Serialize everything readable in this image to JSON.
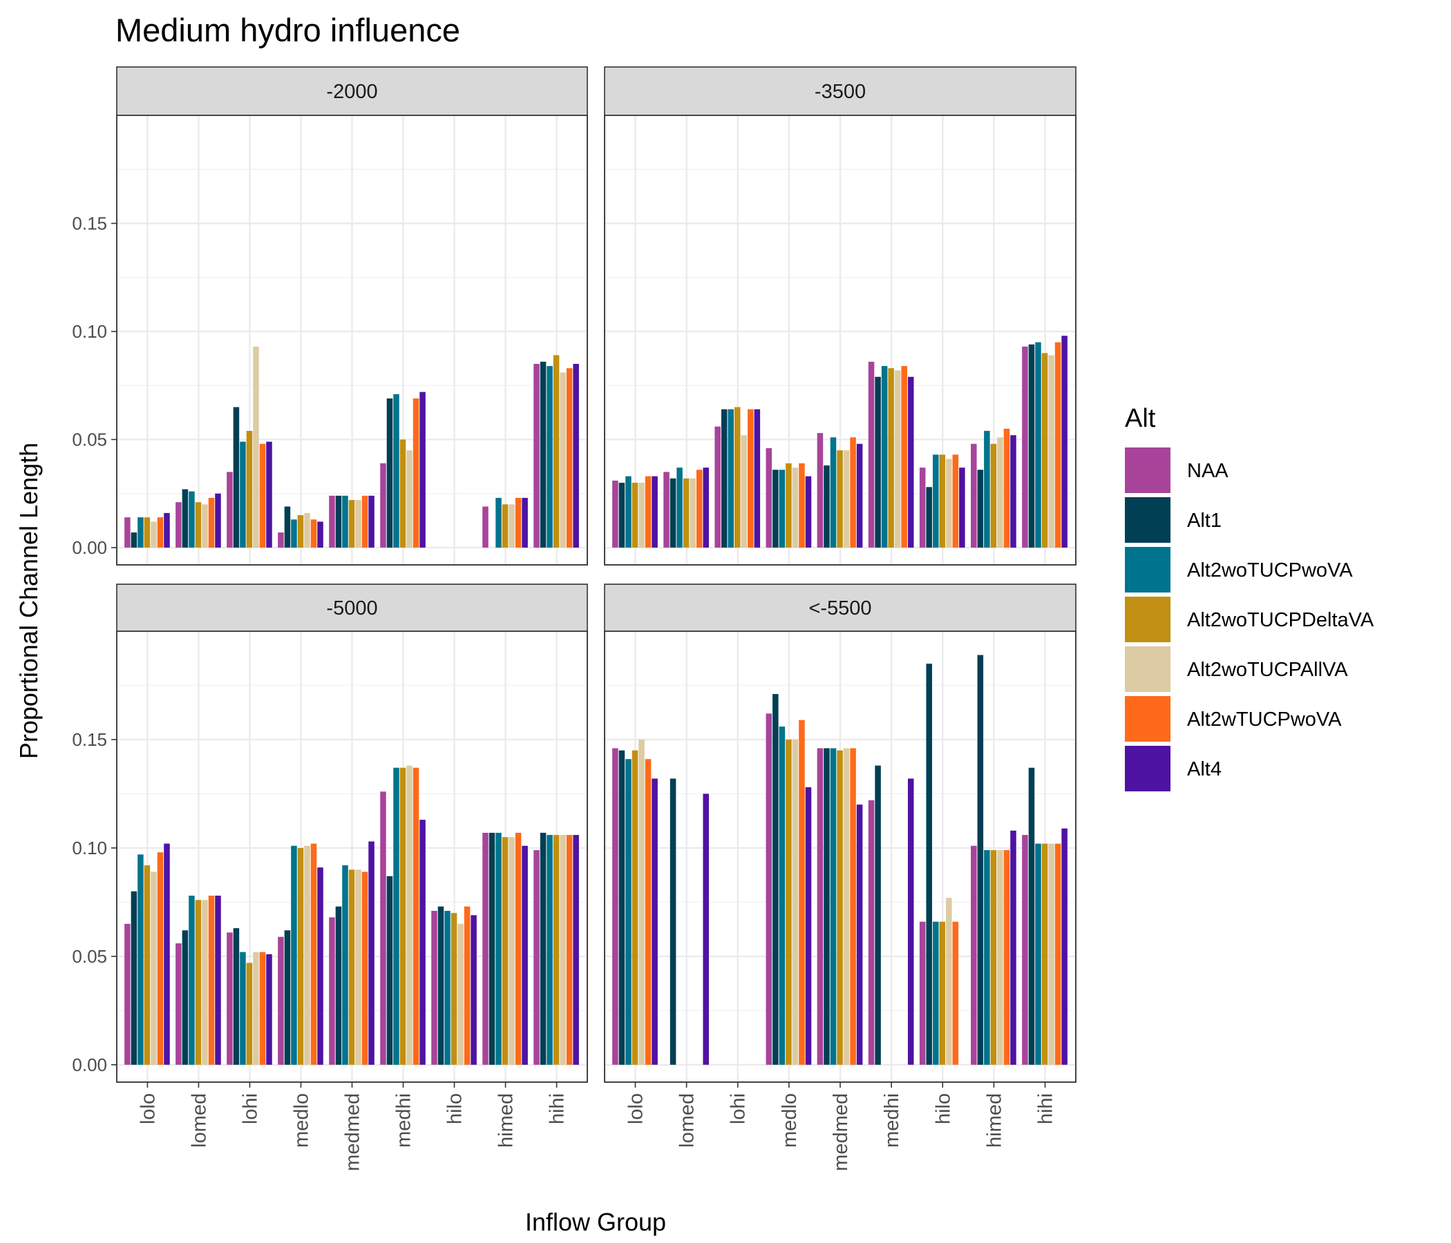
{
  "chart_data": {
    "type": "bar",
    "title": "Medium hydro influence",
    "xlabel": "Inflow Group",
    "ylabel": "Proportional Channel Length",
    "categories": [
      "lolo",
      "lomed",
      "lohi",
      "medlo",
      "medmed",
      "medhi",
      "hilo",
      "himed",
      "hihi"
    ],
    "ylim_top_row": [
      -0.008,
      0.2
    ],
    "ylim_bottom_row": [
      -0.008,
      0.2
    ],
    "yticks": [
      "0.00",
      "0.05",
      "0.10",
      "0.15"
    ],
    "ytick_values": [
      0,
      0.05,
      0.1,
      0.15
    ],
    "grid": true,
    "legend": {
      "title": "Alt",
      "position": "right",
      "entries": [
        "NAA",
        "Alt1",
        "Alt2woTUCPwoVA",
        "Alt2woTUCPDeltaVA",
        "Alt2woTUCPAllVA",
        "Alt2wTUCPwoVA",
        "Alt4"
      ]
    },
    "colors": [
      "#A8449A",
      "#013F54",
      "#00748E",
      "#C18F11",
      "#DDCBA3",
      "#FE6A1A",
      "#4E13A2"
    ],
    "panels": [
      {
        "label": "-2000",
        "series": [
          {
            "name": "NAA",
            "values": [
              0.014,
              0.021,
              0.035,
              0.007,
              0.024,
              0.039,
              null,
              0.019,
              0.085
            ]
          },
          {
            "name": "Alt1",
            "values": [
              0.007,
              0.027,
              0.065,
              0.019,
              0.024,
              0.069,
              null,
              null,
              0.086
            ]
          },
          {
            "name": "Alt2woTUCPwoVA",
            "values": [
              0.014,
              0.026,
              0.049,
              0.013,
              0.024,
              0.071,
              null,
              0.023,
              0.084
            ]
          },
          {
            "name": "Alt2woTUCPDeltaVA",
            "values": [
              0.014,
              0.021,
              0.054,
              0.015,
              0.022,
              0.05,
              null,
              0.02,
              0.089
            ]
          },
          {
            "name": "Alt2woTUCPAllVA",
            "values": [
              0.012,
              0.02,
              0.093,
              0.016,
              0.022,
              0.045,
              null,
              0.02,
              0.081
            ]
          },
          {
            "name": "Alt2wTUCPwoVA",
            "values": [
              0.014,
              0.023,
              0.048,
              0.013,
              0.024,
              0.069,
              null,
              0.023,
              0.083
            ]
          },
          {
            "name": "Alt4",
            "values": [
              0.016,
              0.025,
              0.049,
              0.012,
              0.024,
              0.072,
              null,
              0.023,
              0.085
            ]
          }
        ]
      },
      {
        "label": "-3500",
        "series": [
          {
            "name": "NAA",
            "values": [
              0.031,
              0.035,
              0.056,
              0.046,
              0.053,
              0.086,
              0.037,
              0.048,
              0.093
            ]
          },
          {
            "name": "Alt1",
            "values": [
              0.03,
              0.032,
              0.064,
              0.036,
              0.038,
              0.079,
              0.028,
              0.036,
              0.094
            ]
          },
          {
            "name": "Alt2woTUCPwoVA",
            "values": [
              0.033,
              0.037,
              0.064,
              0.036,
              0.051,
              0.084,
              0.043,
              0.054,
              0.095
            ]
          },
          {
            "name": "Alt2woTUCPDeltaVA",
            "values": [
              0.03,
              0.032,
              0.065,
              0.039,
              0.045,
              0.083,
              0.043,
              0.048,
              0.09
            ]
          },
          {
            "name": "Alt2woTUCPAllVA",
            "values": [
              0.03,
              0.032,
              0.052,
              0.037,
              0.045,
              0.082,
              0.041,
              0.051,
              0.089
            ]
          },
          {
            "name": "Alt2wTUCPwoVA",
            "values": [
              0.033,
              0.036,
              0.064,
              0.039,
              0.051,
              0.084,
              0.043,
              0.055,
              0.095
            ]
          },
          {
            "name": "Alt4",
            "values": [
              0.033,
              0.037,
              0.064,
              0.033,
              0.048,
              0.079,
              0.037,
              0.052,
              0.098
            ]
          }
        ]
      },
      {
        "label": "-5000",
        "series": [
          {
            "name": "NAA",
            "values": [
              0.065,
              0.056,
              0.061,
              0.059,
              0.068,
              0.126,
              0.071,
              0.107,
              0.099
            ]
          },
          {
            "name": "Alt1",
            "values": [
              0.08,
              0.062,
              0.063,
              0.062,
              0.073,
              0.087,
              0.073,
              0.107,
              0.107
            ]
          },
          {
            "name": "Alt2woTUCPwoVA",
            "values": [
              0.097,
              0.078,
              0.052,
              0.101,
              0.092,
              0.137,
              0.071,
              0.107,
              0.106
            ]
          },
          {
            "name": "Alt2woTUCPDeltaVA",
            "values": [
              0.092,
              0.076,
              0.047,
              0.1,
              0.09,
              0.137,
              0.07,
              0.105,
              0.106
            ]
          },
          {
            "name": "Alt2woTUCPAllVA",
            "values": [
              0.089,
              0.076,
              0.052,
              0.101,
              0.09,
              0.138,
              0.065,
              0.105,
              0.106
            ]
          },
          {
            "name": "Alt2wTUCPwoVA",
            "values": [
              0.098,
              0.078,
              0.052,
              0.102,
              0.089,
              0.137,
              0.073,
              0.107,
              0.106
            ]
          },
          {
            "name": "Alt4",
            "values": [
              0.102,
              0.078,
              0.051,
              0.091,
              0.103,
              0.113,
              0.069,
              0.101,
              0.106
            ]
          }
        ]
      },
      {
        "label": "<-5500",
        "series": [
          {
            "name": "NAA",
            "values": [
              0.146,
              null,
              null,
              0.162,
              0.146,
              0.122,
              0.066,
              0.101,
              0.106
            ]
          },
          {
            "name": "Alt1",
            "values": [
              0.145,
              0.132,
              null,
              0.171,
              0.146,
              0.138,
              0.185,
              0.189,
              0.137
            ]
          },
          {
            "name": "Alt2woTUCPwoVA",
            "values": [
              0.141,
              null,
              null,
              0.156,
              0.146,
              null,
              0.066,
              0.099,
              0.102
            ]
          },
          {
            "name": "Alt2woTUCPDeltaVA",
            "values": [
              0.145,
              null,
              null,
              0.15,
              0.145,
              null,
              0.066,
              0.099,
              0.102
            ]
          },
          {
            "name": "Alt2woTUCPAllVA",
            "values": [
              0.15,
              null,
              null,
              0.15,
              0.146,
              null,
              0.077,
              0.099,
              0.102
            ]
          },
          {
            "name": "Alt2wTUCPwoVA",
            "values": [
              0.141,
              null,
              null,
              0.159,
              0.146,
              null,
              0.066,
              0.099,
              0.102
            ]
          },
          {
            "name": "Alt4",
            "values": [
              0.132,
              0.125,
              null,
              0.128,
              0.12,
              0.132,
              null,
              0.108,
              0.109
            ]
          }
        ]
      }
    ]
  }
}
